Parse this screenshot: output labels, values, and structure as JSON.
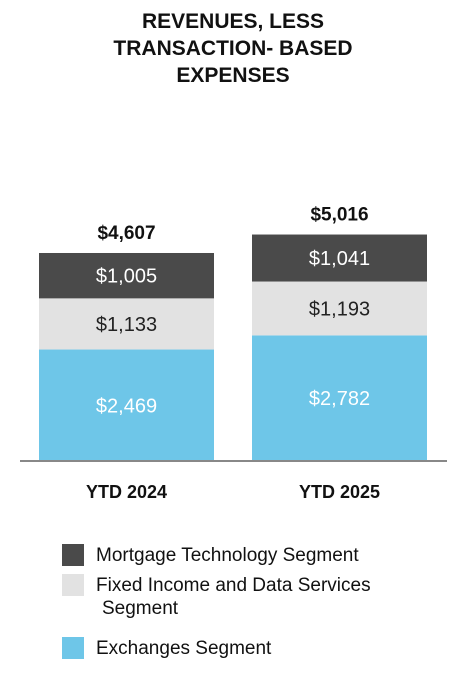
{
  "title_lines": [
    "REVENUES, LESS",
    "TRANSACTION- BASED",
    "EXPENSES"
  ],
  "chart_data": {
    "type": "bar",
    "stacked": true,
    "title": "REVENUES, LESS TRANSACTION- BASED EXPENSES",
    "categories": [
      "YTD 2024",
      "YTD 2025"
    ],
    "totals": [
      4607,
      5016
    ],
    "total_labels": [
      "$4,607",
      "$5,016"
    ],
    "series": [
      {
        "name": "Exchanges Segment",
        "values": [
          2469,
          2782
        ],
        "labels": [
          "$2,469",
          "$2,782"
        ],
        "color": "#6ec6e8",
        "label_color": "#ffffff"
      },
      {
        "name": "Fixed Income and Data Services Segment",
        "values": [
          1133,
          1193
        ],
        "labels": [
          "$1,133",
          "$1,193"
        ],
        "color": "#e2e2e2",
        "label_color": "#222222"
      },
      {
        "name": "Mortgage Technology Segment",
        "values": [
          1005,
          1041
        ],
        "labels": [
          "$1,005",
          "$1,041"
        ],
        "color": "#4a4a4a",
        "label_color": "#ffffff"
      }
    ],
    "legend_position": "bottom",
    "grid": false
  },
  "legend": [
    {
      "color": "#4a4a4a",
      "lines": [
        "Mortgage Technology Segment"
      ]
    },
    {
      "color": "#e2e2e2",
      "lines": [
        "Fixed Income and Data Services",
        "Segment"
      ]
    },
    {
      "color": "#6ec6e8",
      "lines": [
        "Exchanges Segment"
      ]
    }
  ]
}
